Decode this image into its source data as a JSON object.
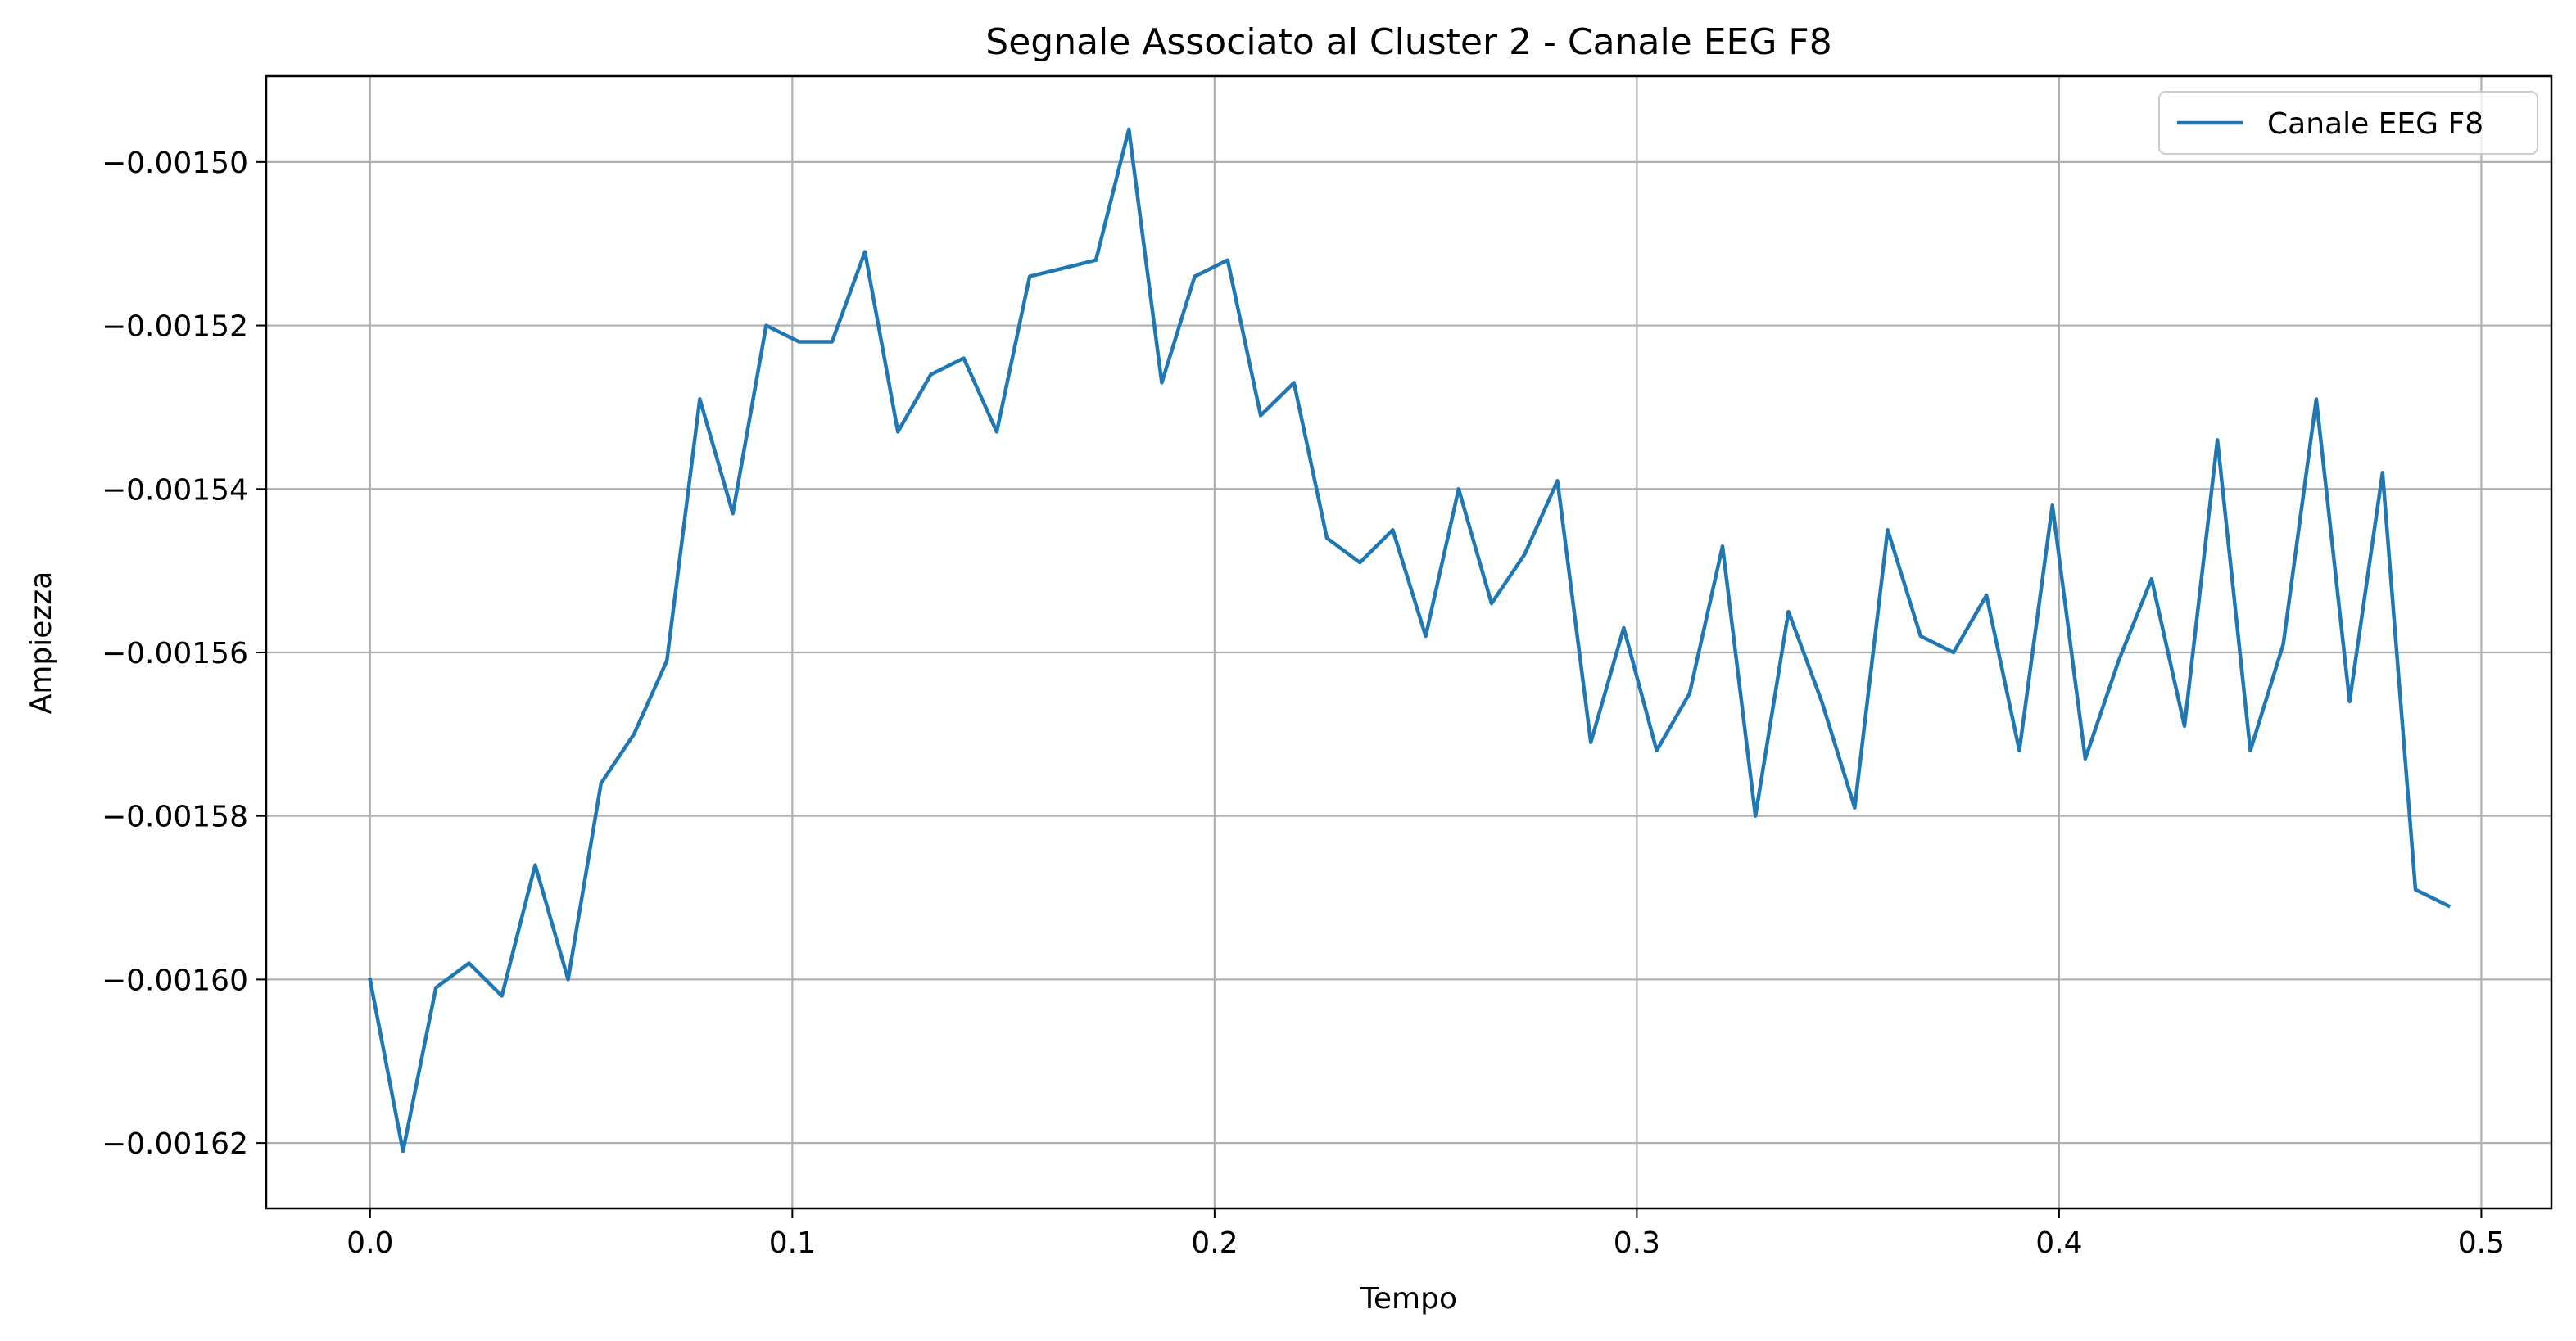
{
  "chart_data": {
    "type": "line",
    "title": "Segnale Associato al Cluster 2 - Canale EEG F8",
    "xlabel": "Tempo",
    "ylabel": "Ampiezza",
    "xlim": [
      -0.0246,
      0.5166
    ],
    "ylim": [
      -0.001628,
      -0.0014895
    ],
    "xticks": [
      0.0,
      0.1,
      0.2,
      0.3,
      0.4,
      0.5
    ],
    "xtick_labels": [
      "0.0",
      "0.1",
      "0.2",
      "0.3",
      "0.4",
      "0.5"
    ],
    "yticks": [
      -0.0015,
      -0.00152,
      -0.00154,
      -0.00156,
      -0.00158,
      -0.0016,
      -0.00162
    ],
    "ytick_labels": [
      "−0.00150",
      "−0.00152",
      "−0.00154",
      "−0.00156",
      "−0.00158",
      "−0.00160",
      "−0.00162"
    ],
    "grid": true,
    "legend_position": "top-right",
    "series": [
      {
        "name": "Canale EEG F8",
        "color": "#1f77b4",
        "x": [
          0.0,
          0.0078,
          0.0156,
          0.0234,
          0.0312,
          0.0391,
          0.0469,
          0.0547,
          0.0625,
          0.0703,
          0.0781,
          0.0859,
          0.0938,
          0.1016,
          0.1094,
          0.1172,
          0.125,
          0.1328,
          0.1406,
          0.1484,
          0.1562,
          0.1641,
          0.1719,
          0.1797,
          0.1875,
          0.1953,
          0.2031,
          0.2109,
          0.2188,
          0.2266,
          0.2344,
          0.2422,
          0.25,
          0.2578,
          0.2656,
          0.2734,
          0.2812,
          0.2891,
          0.2969,
          0.3047,
          0.3125,
          0.3203,
          0.3281,
          0.3359,
          0.3438,
          0.3516,
          0.3594,
          0.3672,
          0.375,
          0.3828,
          0.3906,
          0.3984,
          0.4062,
          0.4141,
          0.4219,
          0.4297,
          0.4375,
          0.4453,
          0.4531,
          0.4609,
          0.4688,
          0.4766,
          0.4844,
          0.4922
        ],
        "y": [
          -0.0016,
          -0.001621,
          -0.001601,
          -0.001598,
          -0.001602,
          -0.001586,
          -0.0016,
          -0.001576,
          -0.00157,
          -0.001561,
          -0.001529,
          -0.001543,
          -0.00152,
          -0.001522,
          -0.001522,
          -0.001511,
          -0.001533,
          -0.001526,
          -0.001524,
          -0.001533,
          -0.001514,
          -0.001513,
          -0.001512,
          -0.001496,
          -0.001527,
          -0.001514,
          -0.001512,
          -0.001531,
          -0.001527,
          -0.001546,
          -0.001549,
          -0.001545,
          -0.001558,
          -0.00154,
          -0.001554,
          -0.001548,
          -0.001539,
          -0.001571,
          -0.001557,
          -0.001572,
          -0.001565,
          -0.001547,
          -0.00158,
          -0.001555,
          -0.001566,
          -0.001579,
          -0.001545,
          -0.001558,
          -0.00156,
          -0.001553,
          -0.001572,
          -0.001542,
          -0.001573,
          -0.001561,
          -0.001551,
          -0.001569,
          -0.001534,
          -0.001572,
          -0.001559,
          -0.001529,
          -0.001566,
          -0.001538,
          -0.001589,
          -0.001591
        ]
      }
    ]
  }
}
